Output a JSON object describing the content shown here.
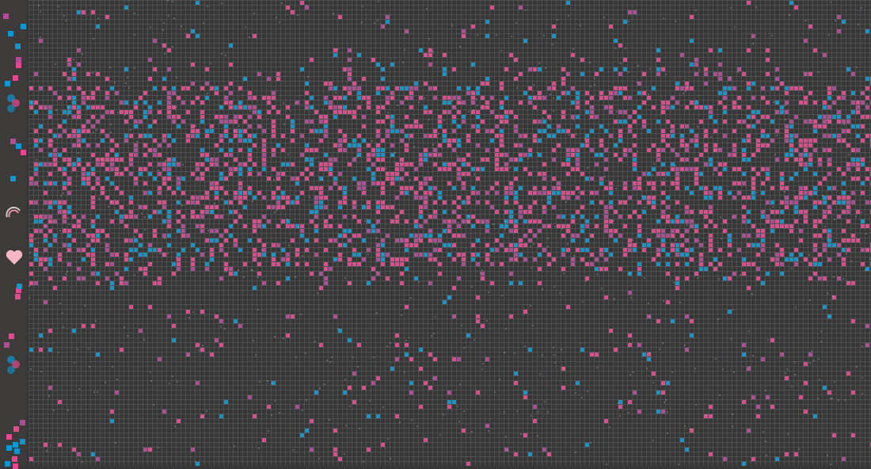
{
  "pattern": {
    "background": "#383737",
    "grid_color": "#5a5a5a",
    "palette": {
      "pink": "#e8478f",
      "blue": "#0b98d2",
      "purple": "#b24a98"
    },
    "strip_background": "#3d3b39",
    "heart_color": "#f4b8c4",
    "motif_icons": [
      "flower-cluster-icon",
      "rainbow-icon",
      "heart-icon",
      "flower-cluster-icon"
    ]
  }
}
